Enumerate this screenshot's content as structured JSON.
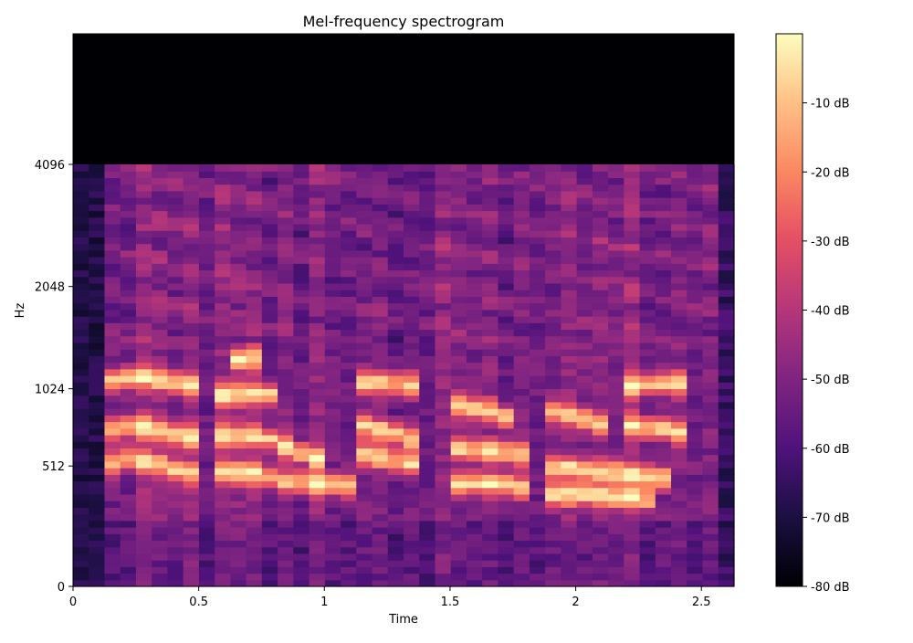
{
  "chart_data": {
    "type": "heatmap",
    "title": "Mel-frequency spectrogram",
    "xlabel": "Time",
    "ylabel": "Hz",
    "xlim": [
      0,
      2.63
    ],
    "x_ticks": [
      0,
      0.5,
      1,
      1.5,
      2,
      2.5
    ],
    "x_tick_labels": [
      "0",
      "0.5",
      "1",
      "1.5",
      "2",
      "2.5"
    ],
    "y_scale": "mel",
    "ylim": [
      0,
      8000
    ],
    "y_ticks": [
      0,
      512,
      1024,
      2048,
      4096
    ],
    "y_tick_labels": [
      "0",
      "512",
      "1024",
      "2048",
      "4096"
    ],
    "content_fmax_hz": 4096,
    "colormap": "magma",
    "colorbar": {
      "range": [
        -80,
        0
      ],
      "ticks": [
        -80,
        -70,
        -60,
        -50,
        -40,
        -30,
        -20,
        -10
      ],
      "tick_labels": [
        "-80 dB",
        "-70 dB",
        "-60 dB",
        "-50 dB",
        "-40 dB",
        "-30 dB",
        "-20 dB",
        "-10 dB"
      ]
    },
    "formant_tracks_hz": [
      {
        "segments": [
          [
            0.12,
            1080
          ],
          [
            0.25,
            1130
          ],
          [
            0.35,
            1090
          ],
          [
            0.48,
            1050
          ]
        ]
      },
      {
        "segments": [
          [
            0.12,
            720
          ],
          [
            0.25,
            760
          ],
          [
            0.35,
            720
          ],
          [
            0.48,
            680
          ]
        ]
      },
      {
        "segments": [
          [
            0.12,
            520
          ],
          [
            0.25,
            560
          ],
          [
            0.4,
            500
          ],
          [
            0.5,
            470
          ]
        ]
      },
      {
        "segments": [
          [
            0.6,
            1260
          ],
          [
            0.75,
            1290
          ],
          [
            0.78,
            1250
          ]
        ]
      },
      {
        "segments": [
          [
            0.58,
            980
          ],
          [
            0.75,
            1000
          ],
          [
            0.8,
            980
          ]
        ]
      },
      {
        "segments": [
          [
            0.58,
            690
          ],
          [
            0.75,
            700
          ],
          [
            0.85,
            620
          ],
          [
            1.0,
            540
          ]
        ]
      },
      {
        "segments": [
          [
            0.58,
            480
          ],
          [
            0.75,
            470
          ],
          [
            0.85,
            430
          ],
          [
            1.1,
            410
          ]
        ]
      },
      {
        "segments": [
          [
            1.15,
            1080
          ],
          [
            1.35,
            1060
          ]
        ]
      },
      {
        "segments": [
          [
            1.15,
            760
          ],
          [
            1.3,
            700
          ],
          [
            1.4,
            640
          ]
        ]
      },
      {
        "segments": [
          [
            1.15,
            580
          ],
          [
            1.3,
            540
          ],
          [
            1.4,
            500
          ]
        ]
      },
      {
        "segments": [
          [
            1.5,
            900
          ],
          [
            1.65,
            870
          ],
          [
            1.75,
            800
          ]
        ]
      },
      {
        "segments": [
          [
            1.5,
            620
          ],
          [
            1.65,
            600
          ],
          [
            1.8,
            580
          ]
        ]
      },
      {
        "segments": [
          [
            1.5,
            420
          ],
          [
            1.7,
            420
          ],
          [
            1.8,
            400
          ]
        ]
      },
      {
        "segments": [
          [
            1.85,
            880
          ],
          [
            2.0,
            820
          ],
          [
            2.1,
            760
          ]
        ]
      },
      {
        "segments": [
          [
            1.85,
            520
          ],
          [
            2.0,
            500
          ],
          [
            2.2,
            470
          ],
          [
            2.35,
            450
          ]
        ]
      },
      {
        "segments": [
          [
            1.85,
            370
          ],
          [
            2.1,
            360
          ],
          [
            2.3,
            340
          ]
        ]
      },
      {
        "segments": [
          [
            2.2,
            1040
          ],
          [
            2.35,
            1080
          ],
          [
            2.45,
            1060
          ]
        ]
      },
      {
        "segments": [
          [
            2.2,
            760
          ],
          [
            2.35,
            740
          ],
          [
            2.45,
            700
          ]
        ]
      }
    ]
  }
}
